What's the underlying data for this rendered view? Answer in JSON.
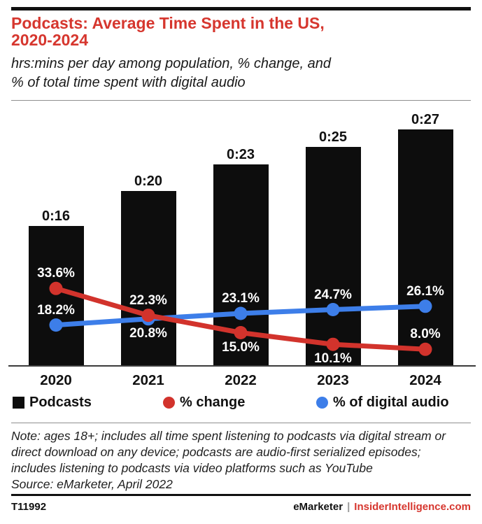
{
  "header": {
    "title_line1": "Podcasts: Average Time Spent in the US,",
    "title_line2": "2020-2024",
    "subtitle_line1": "hrs:mins per day among population, % change, and",
    "subtitle_line2": "% of total time spent with digital audio"
  },
  "chart_data": {
    "type": "combo-bar-line",
    "title": "Podcasts: Average Time Spent in the US, 2020-2024",
    "subtitle": "hrs:mins per day among population, % change, and % of total time spent with digital audio",
    "categories": [
      "2020",
      "2021",
      "2022",
      "2023",
      "2024"
    ],
    "series": [
      {
        "name": "Podcasts",
        "type": "bar",
        "unit": "hrs:mins per day",
        "labels": [
          "0:16",
          "0:20",
          "0:23",
          "0:25",
          "0:27"
        ],
        "values_minutes": [
          16,
          20,
          23,
          25,
          27
        ],
        "color": "#0d0d0d"
      },
      {
        "name": "% change",
        "type": "line",
        "values": [
          33.6,
          22.3,
          15.0,
          10.1,
          8.0
        ],
        "labels": [
          "33.6%",
          "22.3%",
          "15.0%",
          "10.1%",
          "8.0%"
        ],
        "label_positions": [
          "above",
          "above",
          "below",
          "below",
          "above"
        ],
        "color": "#d2332c"
      },
      {
        "name": "% of digital audio",
        "type": "line",
        "values": [
          18.2,
          20.8,
          23.1,
          24.7,
          26.1
        ],
        "labels": [
          "18.2%",
          "20.8%",
          "23.1%",
          "24.7%",
          "26.1%"
        ],
        "label_positions": [
          "above",
          "below",
          "above",
          "above",
          "above"
        ],
        "color": "#3d7ee9"
      }
    ],
    "grid": false,
    "legend_position": "bottom",
    "bar_axis_min_minutes": 0
  },
  "legend": {
    "items": [
      {
        "label": "Podcasts",
        "marker": "square",
        "color": "#0d0d0d"
      },
      {
        "label": "% change",
        "marker": "circle",
        "color": "#d2332c"
      },
      {
        "label": "% of digital audio",
        "marker": "circle",
        "color": "#3d7ee9"
      }
    ]
  },
  "footnote": {
    "note_line1": "Note: ages 18+; includes all time spent listening to podcasts via digital stream or",
    "note_line2": "direct download on any device; podcasts are audio-first serialized episodes;",
    "note_line3": "includes listening to podcasts via video platforms such as YouTube",
    "source_line": "Source: eMarketer, April 2022"
  },
  "footer": {
    "chart_id": "T11992",
    "brand": "eMarketer",
    "separator": "|",
    "site": "InsiderIntelligence.com"
  },
  "colors": {
    "accent_red": "#d6362e",
    "line_red": "#d2332c",
    "line_blue": "#3d7ee9",
    "bar_black": "#0d0d0d"
  }
}
